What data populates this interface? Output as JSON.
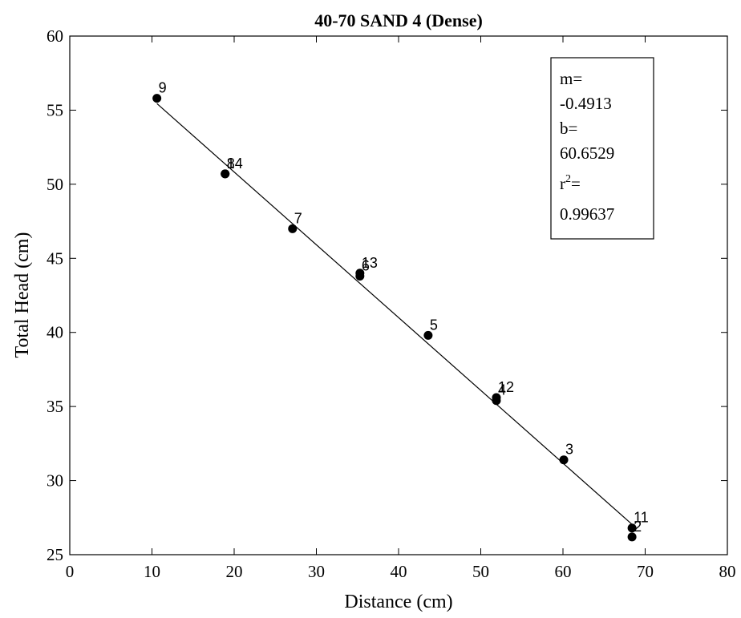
{
  "chart_data": {
    "type": "scatter",
    "title": "40-70 SAND 4 (Dense)",
    "xlabel": "Distance (cm)",
    "ylabel": "Total Head (cm)",
    "xlim": [
      0,
      80
    ],
    "ylim": [
      25,
      60
    ],
    "xticks": [
      "0",
      "10",
      "20",
      "30",
      "40",
      "50",
      "60",
      "70",
      "80"
    ],
    "yticks": [
      "25",
      "30",
      "35",
      "40",
      "45",
      "50",
      "55",
      "60"
    ],
    "grid": false,
    "points": [
      {
        "label": "9",
        "x": 10.6,
        "y": 55.8
      },
      {
        "label": "8",
        "x": 18.9,
        "y": 50.7
      },
      {
        "label": "14",
        "x": 18.9,
        "y": 50.7
      },
      {
        "label": "7",
        "x": 27.1,
        "y": 47.0
      },
      {
        "label": "6",
        "x": 35.3,
        "y": 43.8
      },
      {
        "label": "13",
        "x": 35.3,
        "y": 44.0
      },
      {
        "label": "5",
        "x": 43.6,
        "y": 39.8
      },
      {
        "label": "4",
        "x": 51.9,
        "y": 35.4
      },
      {
        "label": "12",
        "x": 51.9,
        "y": 35.6
      },
      {
        "label": "3",
        "x": 60.1,
        "y": 31.4
      },
      {
        "label": "11",
        "x": 68.4,
        "y": 26.8
      },
      {
        "label": "2",
        "x": 68.4,
        "y": 26.2
      }
    ],
    "fit_line": {
      "m": -0.4913,
      "b": 60.6529,
      "x_range": [
        10.6,
        68.4
      ]
    },
    "annotation": {
      "m_label": "m=",
      "m_value": "-0.4913",
      "b_label": "b=",
      "b_value": "60.6529",
      "r2_base": "r",
      "r2_sup": "2",
      "r2_eq": "=",
      "r2_value": "0.99637"
    }
  }
}
